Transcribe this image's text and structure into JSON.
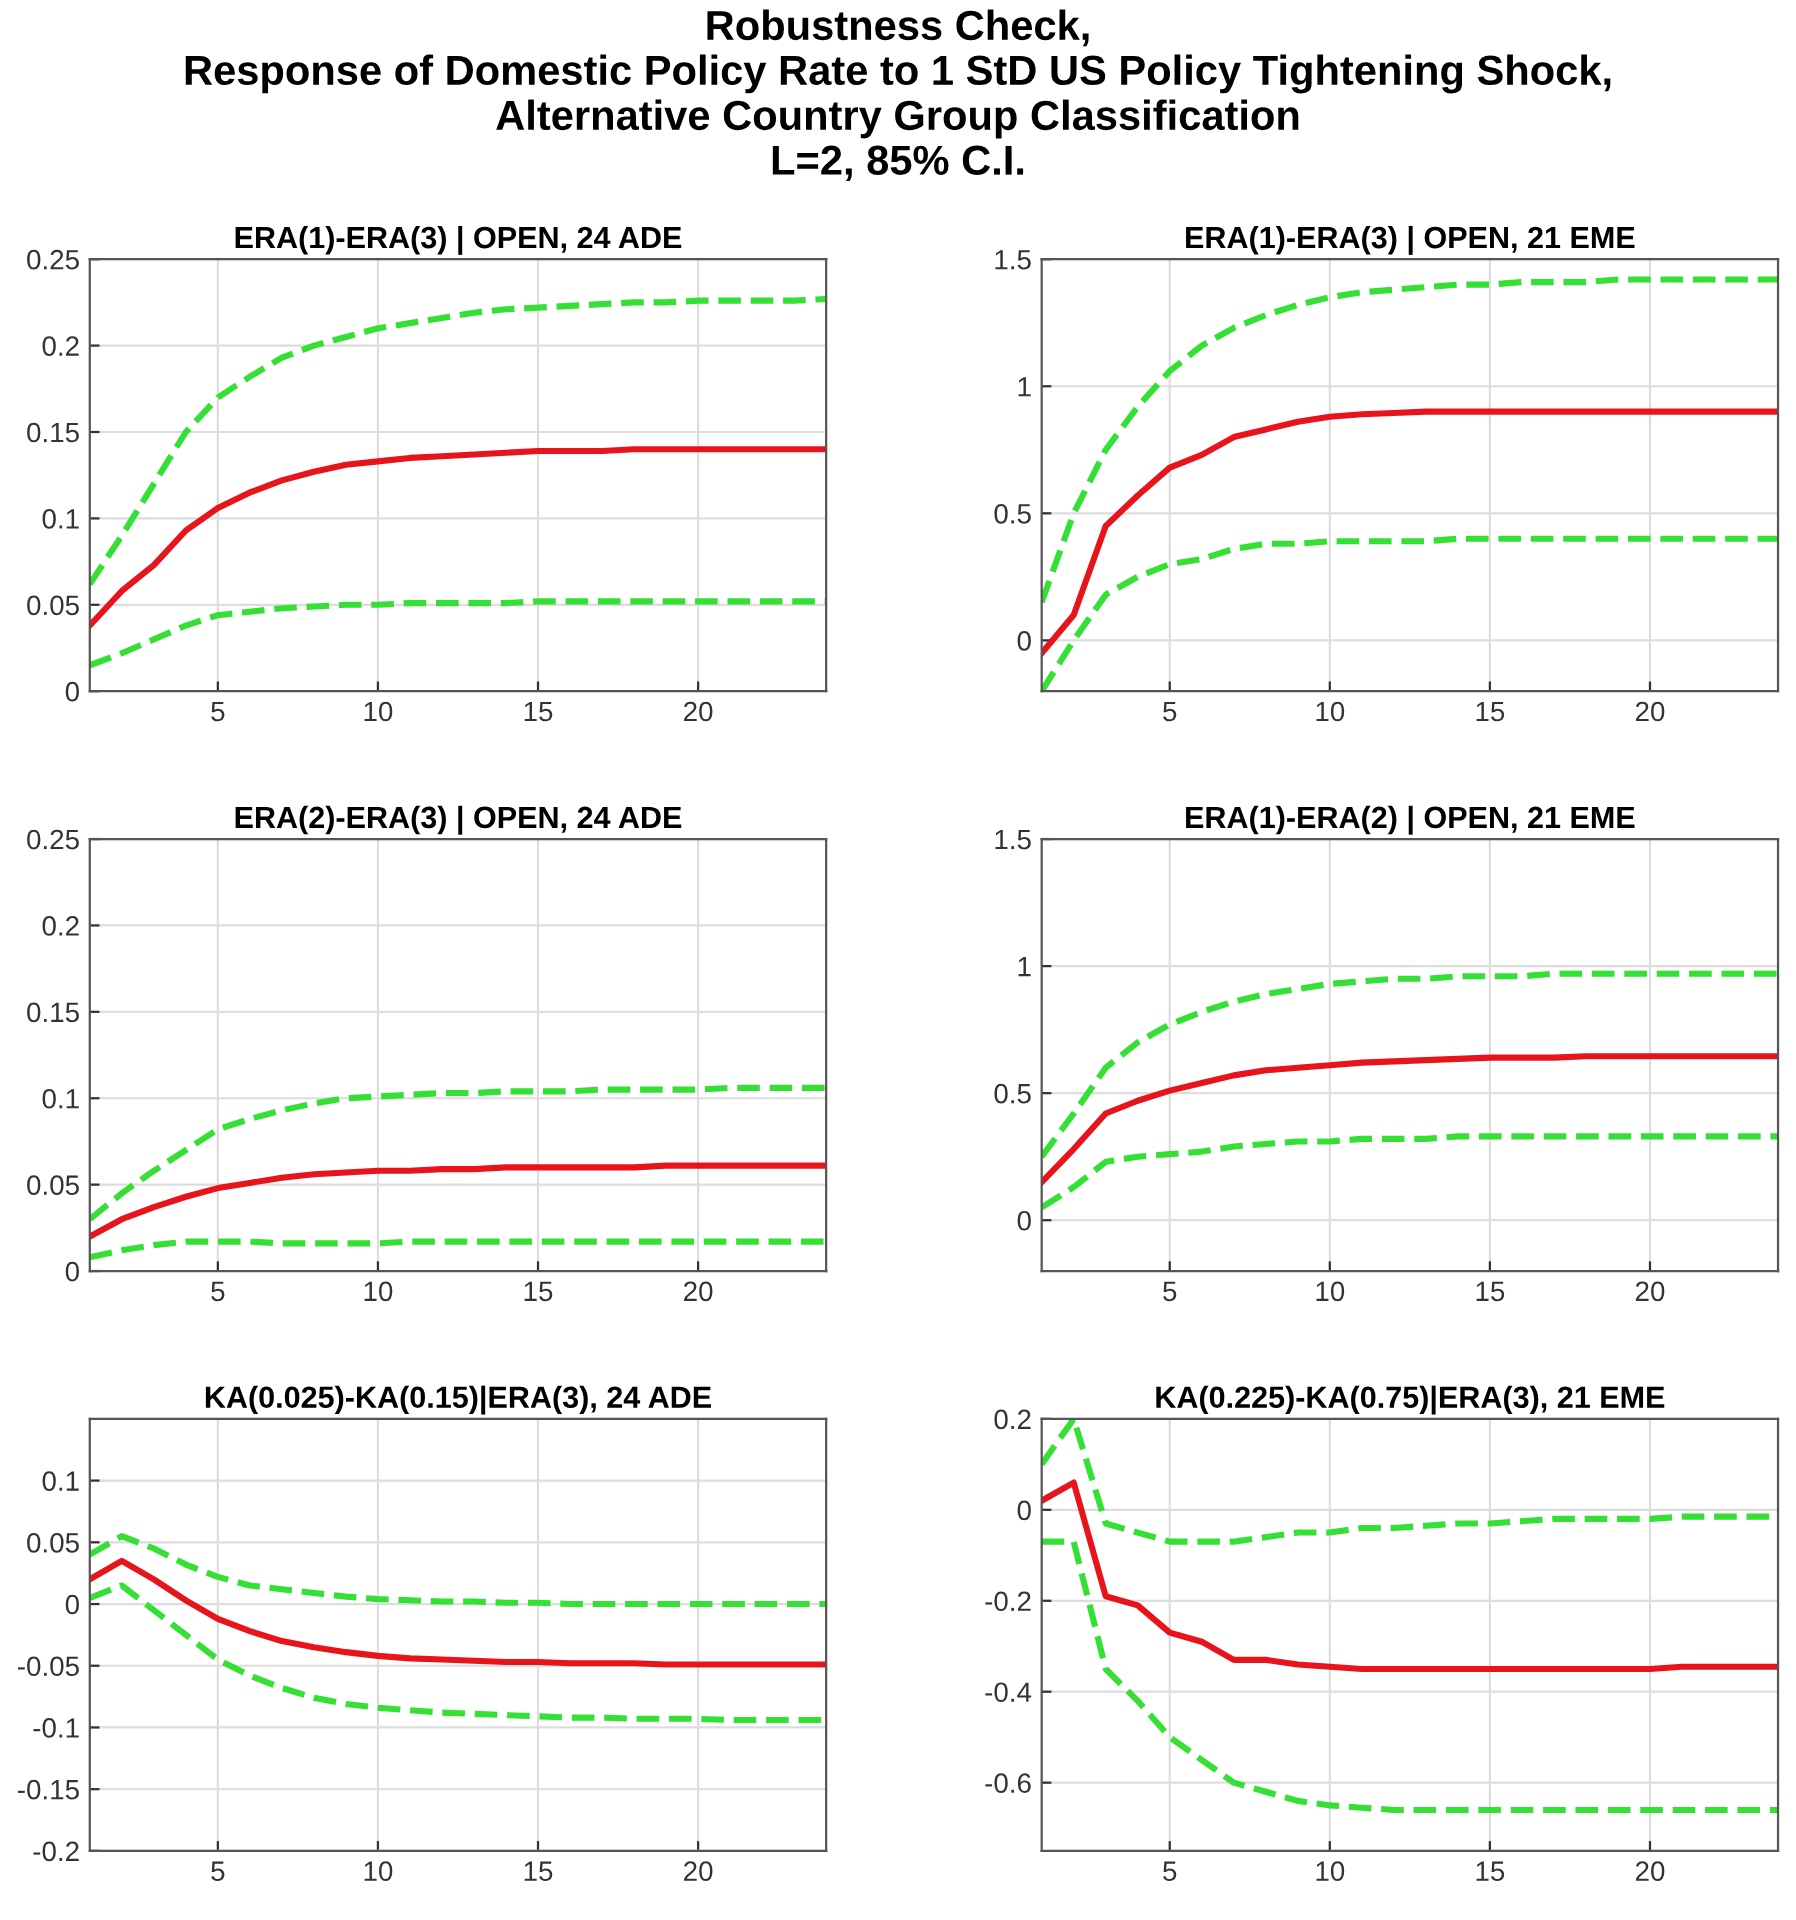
{
  "chart_data": [
    {
      "type": "other",
      "title": "Robustness Check,\nResponse of Domestic Policy Rate to 1 StD US Policy Tightening Shock,\nAlternative Country Group Classification\nL=2, 85% C.I."
    },
    {
      "type": "line",
      "title": "ERA(1)-ERA(3) | OPEN, 24 ADE",
      "x": [
        1,
        2,
        3,
        4,
        5,
        6,
        7,
        8,
        9,
        10,
        11,
        12,
        13,
        14,
        15,
        16,
        17,
        18,
        19,
        20,
        21,
        22,
        23,
        24
      ],
      "xlim": [
        1,
        24
      ],
      "xticks": [
        5,
        10,
        15,
        20
      ],
      "ylim": [
        0,
        0.25
      ],
      "yticks": [
        0,
        0.05,
        0.1,
        0.15,
        0.2,
        0.25
      ],
      "grid": true,
      "series": [
        {
          "color": "#e8141c",
          "line_style": "solid",
          "values": [
            0.038,
            0.058,
            0.073,
            0.093,
            0.106,
            0.115,
            0.122,
            0.127,
            0.131,
            0.133,
            0.135,
            0.136,
            0.137,
            0.138,
            0.139,
            0.139,
            0.139,
            0.14,
            0.14,
            0.14,
            0.14,
            0.14,
            0.14,
            0.14
          ]
        },
        {
          "color": "#33e033",
          "line_style": "dashed",
          "values": [
            0.062,
            0.09,
            0.12,
            0.15,
            0.17,
            0.182,
            0.193,
            0.2,
            0.205,
            0.21,
            0.213,
            0.216,
            0.219,
            0.221,
            0.222,
            0.223,
            0.224,
            0.225,
            0.225,
            0.226,
            0.226,
            0.226,
            0.226,
            0.227
          ]
        },
        {
          "color": "#33e033",
          "line_style": "dashed",
          "values": [
            0.015,
            0.022,
            0.03,
            0.038,
            0.044,
            0.046,
            0.048,
            0.049,
            0.05,
            0.05,
            0.051,
            0.051,
            0.051,
            0.051,
            0.052,
            0.052,
            0.052,
            0.052,
            0.052,
            0.052,
            0.052,
            0.052,
            0.052,
            0.052
          ]
        }
      ]
    },
    {
      "type": "line",
      "title": "ERA(1)-ERA(3) | OPEN, 21 EME",
      "x": [
        1,
        2,
        3,
        4,
        5,
        6,
        7,
        8,
        9,
        10,
        11,
        12,
        13,
        14,
        15,
        16,
        17,
        18,
        19,
        20,
        21,
        22,
        23,
        24
      ],
      "xlim": [
        1,
        24
      ],
      "xticks": [
        5,
        10,
        15,
        20
      ],
      "ylim": [
        -0.2,
        1.5
      ],
      "yticks": [
        0,
        0.5,
        1,
        1.5
      ],
      "grid": true,
      "series": [
        {
          "color": "#e8141c",
          "line_style": "solid",
          "values": [
            -0.05,
            0.1,
            0.45,
            0.57,
            0.68,
            0.73,
            0.8,
            0.83,
            0.86,
            0.88,
            0.89,
            0.895,
            0.9,
            0.9,
            0.9,
            0.9,
            0.9,
            0.9,
            0.9,
            0.9,
            0.9,
            0.9,
            0.9,
            0.9
          ]
        },
        {
          "color": "#33e033",
          "line_style": "dashed",
          "values": [
            0.15,
            0.5,
            0.75,
            0.92,
            1.06,
            1.16,
            1.23,
            1.28,
            1.32,
            1.35,
            1.37,
            1.38,
            1.39,
            1.4,
            1.4,
            1.41,
            1.41,
            1.41,
            1.42,
            1.42,
            1.42,
            1.42,
            1.42,
            1.42
          ]
        },
        {
          "color": "#33e033",
          "line_style": "dashed",
          "values": [
            -0.2,
            0.0,
            0.18,
            0.25,
            0.3,
            0.32,
            0.36,
            0.38,
            0.38,
            0.39,
            0.39,
            0.39,
            0.39,
            0.4,
            0.4,
            0.4,
            0.4,
            0.4,
            0.4,
            0.4,
            0.4,
            0.4,
            0.4,
            0.4
          ]
        }
      ]
    },
    {
      "type": "line",
      "title": "ERA(2)-ERA(3) | OPEN, 24 ADE",
      "x": [
        1,
        2,
        3,
        4,
        5,
        6,
        7,
        8,
        9,
        10,
        11,
        12,
        13,
        14,
        15,
        16,
        17,
        18,
        19,
        20,
        21,
        22,
        23,
        24
      ],
      "xlim": [
        1,
        24
      ],
      "xticks": [
        5,
        10,
        15,
        20
      ],
      "ylim": [
        0,
        0.25
      ],
      "yticks": [
        0,
        0.05,
        0.1,
        0.15,
        0.2,
        0.25
      ],
      "grid": true,
      "series": [
        {
          "color": "#e8141c",
          "line_style": "solid",
          "values": [
            0.02,
            0.03,
            0.037,
            0.043,
            0.048,
            0.051,
            0.054,
            0.056,
            0.057,
            0.058,
            0.058,
            0.059,
            0.059,
            0.06,
            0.06,
            0.06,
            0.06,
            0.06,
            0.061,
            0.061,
            0.061,
            0.061,
            0.061,
            0.061
          ]
        },
        {
          "color": "#33e033",
          "line_style": "dashed",
          "values": [
            0.03,
            0.045,
            0.058,
            0.07,
            0.082,
            0.088,
            0.093,
            0.097,
            0.1,
            0.101,
            0.102,
            0.103,
            0.103,
            0.104,
            0.104,
            0.104,
            0.105,
            0.105,
            0.105,
            0.105,
            0.106,
            0.106,
            0.106,
            0.106
          ]
        },
        {
          "color": "#33e033",
          "line_style": "dashed",
          "values": [
            0.008,
            0.012,
            0.015,
            0.017,
            0.017,
            0.017,
            0.016,
            0.016,
            0.016,
            0.016,
            0.017,
            0.017,
            0.017,
            0.017,
            0.017,
            0.017,
            0.017,
            0.017,
            0.017,
            0.017,
            0.017,
            0.017,
            0.017,
            0.017
          ]
        }
      ]
    },
    {
      "type": "line",
      "title": "ERA(1)-ERA(2) | OPEN, 21 EME",
      "x": [
        1,
        2,
        3,
        4,
        5,
        6,
        7,
        8,
        9,
        10,
        11,
        12,
        13,
        14,
        15,
        16,
        17,
        18,
        19,
        20,
        21,
        22,
        23,
        24
      ],
      "xlim": [
        1,
        24
      ],
      "xticks": [
        5,
        10,
        15,
        20
      ],
      "ylim": [
        -0.2,
        1.5
      ],
      "yticks": [
        0,
        0.5,
        1,
        1.5
      ],
      "grid": true,
      "series": [
        {
          "color": "#e8141c",
          "line_style": "solid",
          "values": [
            0.15,
            0.28,
            0.42,
            0.47,
            0.51,
            0.54,
            0.57,
            0.59,
            0.6,
            0.61,
            0.62,
            0.625,
            0.63,
            0.635,
            0.64,
            0.64,
            0.64,
            0.645,
            0.645,
            0.645,
            0.645,
            0.645,
            0.645,
            0.645
          ]
        },
        {
          "color": "#33e033",
          "line_style": "dashed",
          "values": [
            0.25,
            0.42,
            0.6,
            0.7,
            0.77,
            0.82,
            0.86,
            0.89,
            0.91,
            0.93,
            0.94,
            0.95,
            0.95,
            0.96,
            0.96,
            0.96,
            0.97,
            0.97,
            0.97,
            0.97,
            0.97,
            0.97,
            0.97,
            0.97
          ]
        },
        {
          "color": "#33e033",
          "line_style": "dashed",
          "values": [
            0.05,
            0.13,
            0.23,
            0.25,
            0.26,
            0.27,
            0.29,
            0.3,
            0.31,
            0.31,
            0.32,
            0.32,
            0.32,
            0.33,
            0.33,
            0.33,
            0.33,
            0.33,
            0.33,
            0.33,
            0.33,
            0.33,
            0.33,
            0.33
          ]
        }
      ]
    },
    {
      "type": "line",
      "title": "KA(0.025)-KA(0.15)|ERA(3), 24 ADE",
      "x": [
        1,
        2,
        3,
        4,
        5,
        6,
        7,
        8,
        9,
        10,
        11,
        12,
        13,
        14,
        15,
        16,
        17,
        18,
        19,
        20,
        21,
        22,
        23,
        24
      ],
      "xlim": [
        1,
        24
      ],
      "xticks": [
        5,
        10,
        15,
        20
      ],
      "ylim": [
        -0.2,
        0.15
      ],
      "yticks": [
        -0.2,
        -0.15,
        -0.1,
        -0.05,
        0,
        0.05,
        0.1
      ],
      "grid": true,
      "series": [
        {
          "color": "#e8141c",
          "line_style": "solid",
          "values": [
            0.02,
            0.035,
            0.02,
            0.003,
            -0.012,
            -0.022,
            -0.03,
            -0.035,
            -0.039,
            -0.042,
            -0.044,
            -0.045,
            -0.046,
            -0.047,
            -0.047,
            -0.048,
            -0.048,
            -0.048,
            -0.049,
            -0.049,
            -0.049,
            -0.049,
            -0.049,
            -0.049
          ]
        },
        {
          "color": "#33e033",
          "line_style": "dashed",
          "values": [
            0.04,
            0.055,
            0.045,
            0.032,
            0.022,
            0.015,
            0.012,
            0.009,
            0.006,
            0.004,
            0.003,
            0.002,
            0.002,
            0.001,
            0.001,
            0,
            0,
            0,
            0,
            0,
            0,
            0,
            0,
            0
          ]
        },
        {
          "color": "#33e033",
          "line_style": "dashed",
          "values": [
            0.005,
            0.015,
            -0.005,
            -0.025,
            -0.045,
            -0.058,
            -0.068,
            -0.076,
            -0.081,
            -0.084,
            -0.086,
            -0.088,
            -0.089,
            -0.09,
            -0.091,
            -0.092,
            -0.092,
            -0.093,
            -0.093,
            -0.093,
            -0.094,
            -0.094,
            -0.094,
            -0.094
          ]
        }
      ]
    },
    {
      "type": "line",
      "title": "KA(0.225)-KA(0.75)|ERA(3), 21 EME",
      "x": [
        1,
        2,
        3,
        4,
        5,
        6,
        7,
        8,
        9,
        10,
        11,
        12,
        13,
        14,
        15,
        16,
        17,
        18,
        19,
        20,
        21,
        22,
        23,
        24
      ],
      "xlim": [
        1,
        24
      ],
      "xticks": [
        5,
        10,
        15,
        20
      ],
      "ylim": [
        -0.75,
        0.2
      ],
      "yticks": [
        -0.6,
        -0.4,
        -0.2,
        0,
        0.2
      ],
      "grid": true,
      "series": [
        {
          "color": "#e8141c",
          "line_style": "solid",
          "values": [
            0.02,
            0.06,
            -0.19,
            -0.21,
            -0.27,
            -0.29,
            -0.33,
            -0.33,
            -0.34,
            -0.345,
            -0.35,
            -0.35,
            -0.35,
            -0.35,
            -0.35,
            -0.35,
            -0.35,
            -0.35,
            -0.35,
            -0.35,
            -0.345,
            -0.345,
            -0.345,
            -0.345
          ]
        },
        {
          "color": "#33e033",
          "line_style": "dashed",
          "values": [
            0.1,
            0.2,
            -0.03,
            -0.05,
            -0.07,
            -0.07,
            -0.07,
            -0.06,
            -0.05,
            -0.05,
            -0.04,
            -0.04,
            -0.035,
            -0.03,
            -0.03,
            -0.025,
            -0.02,
            -0.02,
            -0.02,
            -0.02,
            -0.015,
            -0.015,
            -0.015,
            -0.015
          ]
        },
        {
          "color": "#33e033",
          "line_style": "dashed",
          "values": [
            -0.07,
            -0.07,
            -0.35,
            -0.42,
            -0.5,
            -0.55,
            -0.6,
            -0.62,
            -0.64,
            -0.65,
            -0.655,
            -0.66,
            -0.66,
            -0.66,
            -0.66,
            -0.66,
            -0.66,
            -0.66,
            -0.66,
            -0.66,
            -0.66,
            -0.66,
            -0.66,
            -0.66
          ]
        }
      ]
    }
  ]
}
